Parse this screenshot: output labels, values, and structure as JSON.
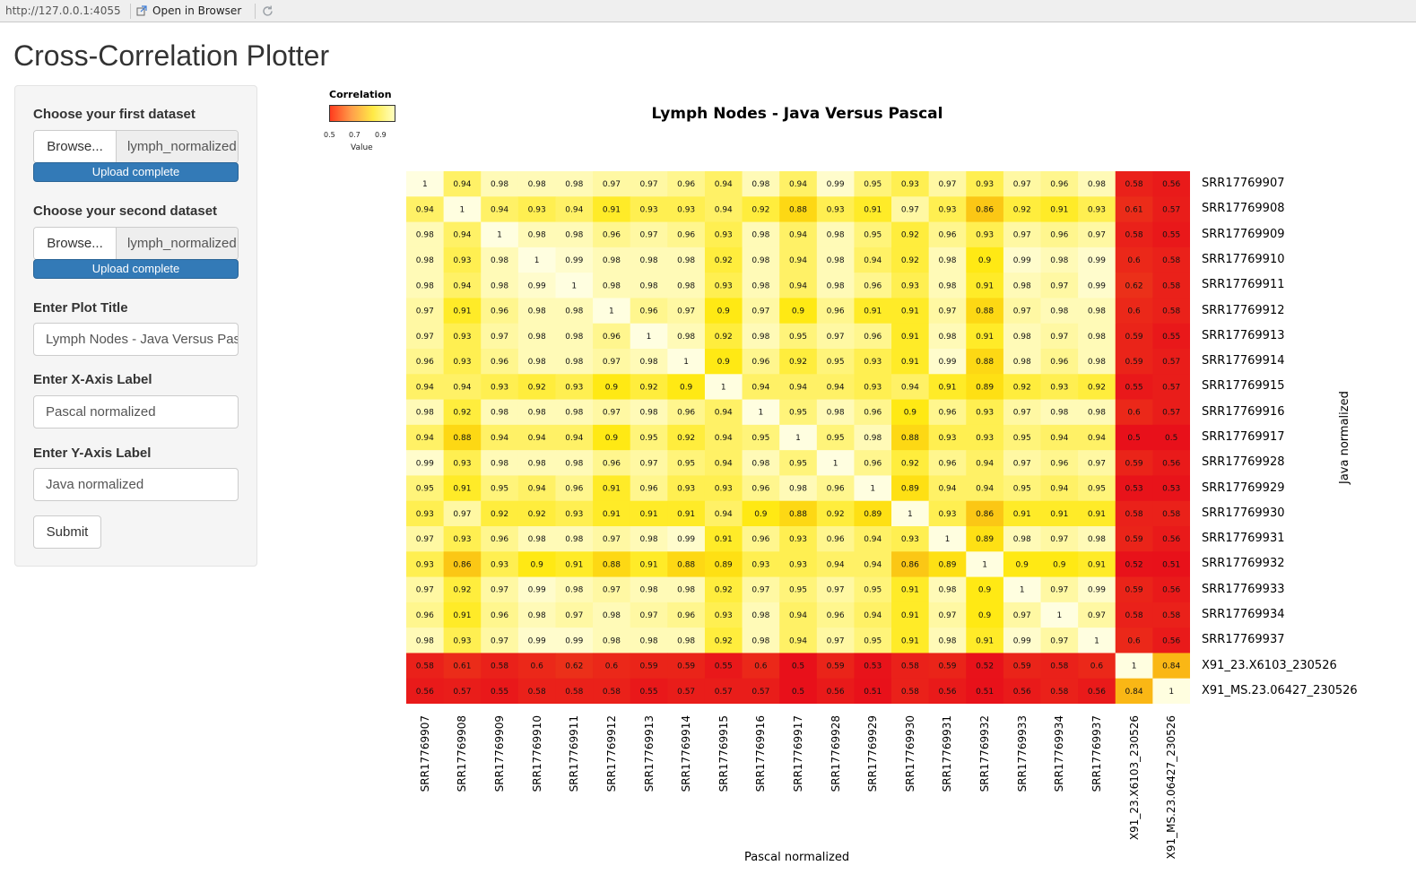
{
  "browser": {
    "url": "http://127.0.0.1:4055",
    "open_label": "Open in Browser",
    "open_icon": "external-window-icon",
    "reload_icon": "reload-icon"
  },
  "app": {
    "title": "Cross-Correlation Plotter"
  },
  "sidebar": {
    "first_dataset": {
      "label": "Choose your first dataset",
      "browse": "Browse...",
      "filename": "lymph_normalized",
      "status": "Upload complete"
    },
    "second_dataset": {
      "label": "Choose your second dataset",
      "browse": "Browse...",
      "filename": "lymph_normalized",
      "status": "Upload complete"
    },
    "plot_title": {
      "label": "Enter Plot Title",
      "value": "Lymph Nodes - Java Versus Pascal"
    },
    "x_axis": {
      "label": "Enter X-Axis Label",
      "value": "Pascal normalized"
    },
    "y_axis": {
      "label": "Enter Y-Axis Label",
      "value": "Java normalized"
    },
    "submit": "Submit"
  },
  "colors": {
    "low": "#e8101a",
    "mid": "#ffe914",
    "high": "#fffee0",
    "progress": "#337ab7"
  },
  "chart_data": {
    "type": "heatmap",
    "title": "Lymph Nodes - Java Versus Pascal",
    "xlabel": "Pascal normalized",
    "ylabel": "Java normalized",
    "legend": {
      "title": "Correlation",
      "ticks": [
        "0.5",
        "0.7",
        "0.9"
      ],
      "sublabel": "Value",
      "position": "top-left"
    },
    "row_labels": [
      "SRR17769907",
      "SRR17769908",
      "SRR17769909",
      "SRR17769910",
      "SRR17769911",
      "SRR17769912",
      "SRR17769913",
      "SRR17769914",
      "SRR17769915",
      "SRR17769916",
      "SRR17769917",
      "SRR17769928",
      "SRR17769929",
      "SRR17769930",
      "SRR17769931",
      "SRR17769932",
      "SRR17769933",
      "SRR17769934",
      "SRR17769937",
      "X91_23.X6103_230526",
      "X91_MS.23.06427_230526"
    ],
    "col_labels": [
      "SRR17769907",
      "SRR17769908",
      "SRR17769909",
      "SRR17769910",
      "SRR17769911",
      "SRR17769912",
      "SRR17769913",
      "SRR17769914",
      "SRR17769915",
      "SRR17769916",
      "SRR17769917",
      "SRR17769928",
      "SRR17769929",
      "SRR17769930",
      "SRR17769931",
      "SRR17769932",
      "SRR17769933",
      "SRR17769934",
      "SRR17769937",
      "X91_23.X6103_230526",
      "X91_MS.23.06427_230526"
    ],
    "values": [
      [
        1,
        0.94,
        0.98,
        0.98,
        0.98,
        0.97,
        0.97,
        0.96,
        0.94,
        0.98,
        0.94,
        0.99,
        0.95,
        0.93,
        0.97,
        0.93,
        0.97,
        0.96,
        0.98,
        0.58,
        0.56
      ],
      [
        0.94,
        1,
        0.94,
        0.93,
        0.94,
        0.91,
        0.93,
        0.93,
        0.94,
        0.92,
        0.88,
        0.93,
        0.91,
        0.97,
        0.93,
        0.86,
        0.92,
        0.91,
        0.93,
        0.61,
        0.57
      ],
      [
        0.98,
        0.94,
        1,
        0.98,
        0.98,
        0.96,
        0.97,
        0.96,
        0.93,
        0.98,
        0.94,
        0.98,
        0.95,
        0.92,
        0.96,
        0.93,
        0.97,
        0.96,
        0.97,
        0.58,
        0.55
      ],
      [
        0.98,
        0.93,
        0.98,
        1,
        0.99,
        0.98,
        0.98,
        0.98,
        0.92,
        0.98,
        0.94,
        0.98,
        0.94,
        0.92,
        0.98,
        0.9,
        0.99,
        0.98,
        0.99,
        0.6,
        0.58
      ],
      [
        0.98,
        0.94,
        0.98,
        0.99,
        1,
        0.98,
        0.98,
        0.98,
        0.93,
        0.98,
        0.94,
        0.98,
        0.96,
        0.93,
        0.98,
        0.91,
        0.98,
        0.97,
        0.99,
        0.62,
        0.58
      ],
      [
        0.97,
        0.91,
        0.96,
        0.98,
        0.98,
        1,
        0.96,
        0.97,
        0.9,
        0.97,
        0.9,
        0.96,
        0.91,
        0.91,
        0.97,
        0.88,
        0.97,
        0.98,
        0.98,
        0.6,
        0.58
      ],
      [
        0.97,
        0.93,
        0.97,
        0.98,
        0.98,
        0.96,
        1,
        0.98,
        0.92,
        0.98,
        0.95,
        0.97,
        0.96,
        0.91,
        0.98,
        0.91,
        0.98,
        0.97,
        0.98,
        0.59,
        0.55
      ],
      [
        0.96,
        0.93,
        0.96,
        0.98,
        0.98,
        0.97,
        0.98,
        1,
        0.9,
        0.96,
        0.92,
        0.95,
        0.93,
        0.91,
        0.99,
        0.88,
        0.98,
        0.96,
        0.98,
        0.59,
        0.57
      ],
      [
        0.94,
        0.94,
        0.93,
        0.92,
        0.93,
        0.9,
        0.92,
        0.9,
        1,
        0.94,
        0.94,
        0.94,
        0.93,
        0.94,
        0.91,
        0.89,
        0.92,
        0.93,
        0.92,
        0.55,
        0.57
      ],
      [
        0.98,
        0.92,
        0.98,
        0.98,
        0.98,
        0.97,
        0.98,
        0.96,
        0.94,
        1,
        0.95,
        0.98,
        0.96,
        0.9,
        0.96,
        0.93,
        0.97,
        0.98,
        0.98,
        0.6,
        0.57
      ],
      [
        0.94,
        0.88,
        0.94,
        0.94,
        0.94,
        0.9,
        0.95,
        0.92,
        0.94,
        0.95,
        1,
        0.95,
        0.98,
        0.88,
        0.93,
        0.93,
        0.95,
        0.94,
        0.94,
        0.5,
        0.5
      ],
      [
        0.99,
        0.93,
        0.98,
        0.98,
        0.98,
        0.96,
        0.97,
        0.95,
        0.94,
        0.98,
        0.95,
        1,
        0.96,
        0.92,
        0.96,
        0.94,
        0.97,
        0.96,
        0.97,
        0.59,
        0.56
      ],
      [
        0.95,
        0.91,
        0.95,
        0.94,
        0.96,
        0.91,
        0.96,
        0.93,
        0.93,
        0.96,
        0.98,
        0.96,
        1,
        0.89,
        0.94,
        0.94,
        0.95,
        0.94,
        0.95,
        0.53,
        0.53
      ],
      [
        0.93,
        0.97,
        0.92,
        0.92,
        0.93,
        0.91,
        0.91,
        0.91,
        0.94,
        0.9,
        0.88,
        0.92,
        0.89,
        1,
        0.93,
        0.86,
        0.91,
        0.91,
        0.91,
        0.58,
        0.58
      ],
      [
        0.97,
        0.93,
        0.96,
        0.98,
        0.98,
        0.97,
        0.98,
        0.99,
        0.91,
        0.96,
        0.93,
        0.96,
        0.94,
        0.93,
        1,
        0.89,
        0.98,
        0.97,
        0.98,
        0.59,
        0.56
      ],
      [
        0.93,
        0.86,
        0.93,
        0.9,
        0.91,
        0.88,
        0.91,
        0.88,
        0.89,
        0.93,
        0.93,
        0.94,
        0.94,
        0.86,
        0.89,
        1,
        0.9,
        0.9,
        0.91,
        0.52,
        0.51
      ],
      [
        0.97,
        0.92,
        0.97,
        0.99,
        0.98,
        0.97,
        0.98,
        0.98,
        0.92,
        0.97,
        0.95,
        0.97,
        0.95,
        0.91,
        0.98,
        0.9,
        1,
        0.97,
        0.99,
        0.59,
        0.56
      ],
      [
        0.96,
        0.91,
        0.96,
        0.98,
        0.97,
        0.98,
        0.97,
        0.96,
        0.93,
        0.98,
        0.94,
        0.96,
        0.94,
        0.91,
        0.97,
        0.9,
        0.97,
        1,
        0.97,
        0.58,
        0.58
      ],
      [
        0.98,
        0.93,
        0.97,
        0.99,
        0.99,
        0.98,
        0.98,
        0.98,
        0.92,
        0.98,
        0.94,
        0.97,
        0.95,
        0.91,
        0.98,
        0.91,
        0.99,
        0.97,
        1,
        0.6,
        0.56
      ],
      [
        0.58,
        0.61,
        0.58,
        0.6,
        0.62,
        0.6,
        0.59,
        0.59,
        0.55,
        0.6,
        0.5,
        0.59,
        0.53,
        0.58,
        0.59,
        0.52,
        0.59,
        0.58,
        0.6,
        1,
        0.84
      ],
      [
        0.56,
        0.57,
        0.55,
        0.58,
        0.58,
        0.58,
        0.55,
        0.57,
        0.57,
        0.57,
        0.5,
        0.56,
        0.51,
        0.58,
        0.56,
        0.51,
        0.56,
        0.58,
        0.56,
        0.84,
        1
      ]
    ]
  }
}
